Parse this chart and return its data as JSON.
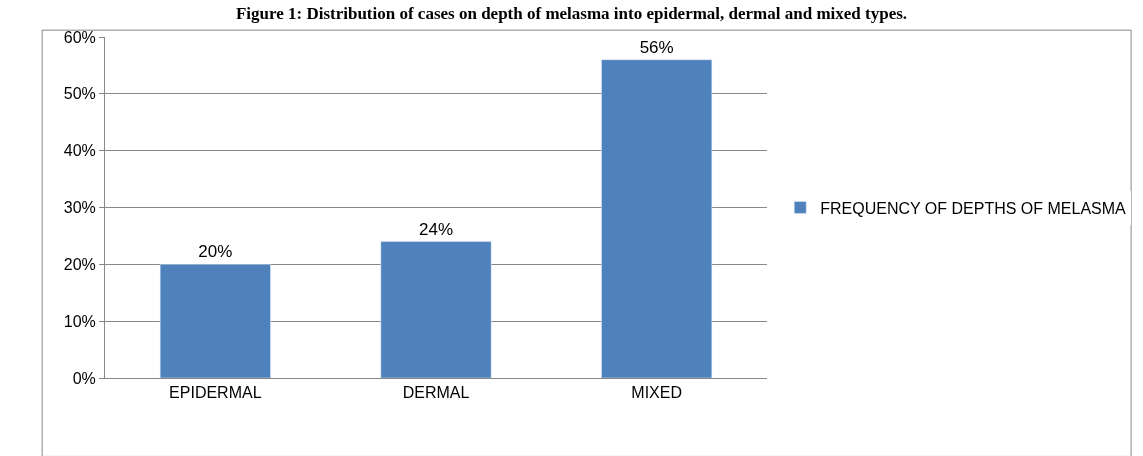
{
  "chart_data": {
    "type": "bar",
    "title": "Figure 1: Distribution of cases on depth of melasma into epidermal, dermal and mixed types.",
    "categories": [
      "EPIDERMAL",
      "DERMAL",
      "MIXED"
    ],
    "series": [
      {
        "name": "FREQUENCY OF DEPTHS OF MELASMA",
        "color": "#4f81bd",
        "values": [
          20,
          24,
          56
        ],
        "value_labels": [
          "20%",
          "24%",
          "56%"
        ]
      }
    ],
    "ylim": [
      0,
      60
    ],
    "yticks": [
      {
        "value": 0,
        "label": "0%"
      },
      {
        "value": 10,
        "label": "10%"
      },
      {
        "value": 20,
        "label": "20%"
      },
      {
        "value": 30,
        "label": "30%"
      },
      {
        "value": 40,
        "label": "40%"
      },
      {
        "value": 50,
        "label": "50%"
      },
      {
        "value": 60,
        "label": "60%"
      }
    ],
    "grid": "y",
    "legend": "right"
  }
}
